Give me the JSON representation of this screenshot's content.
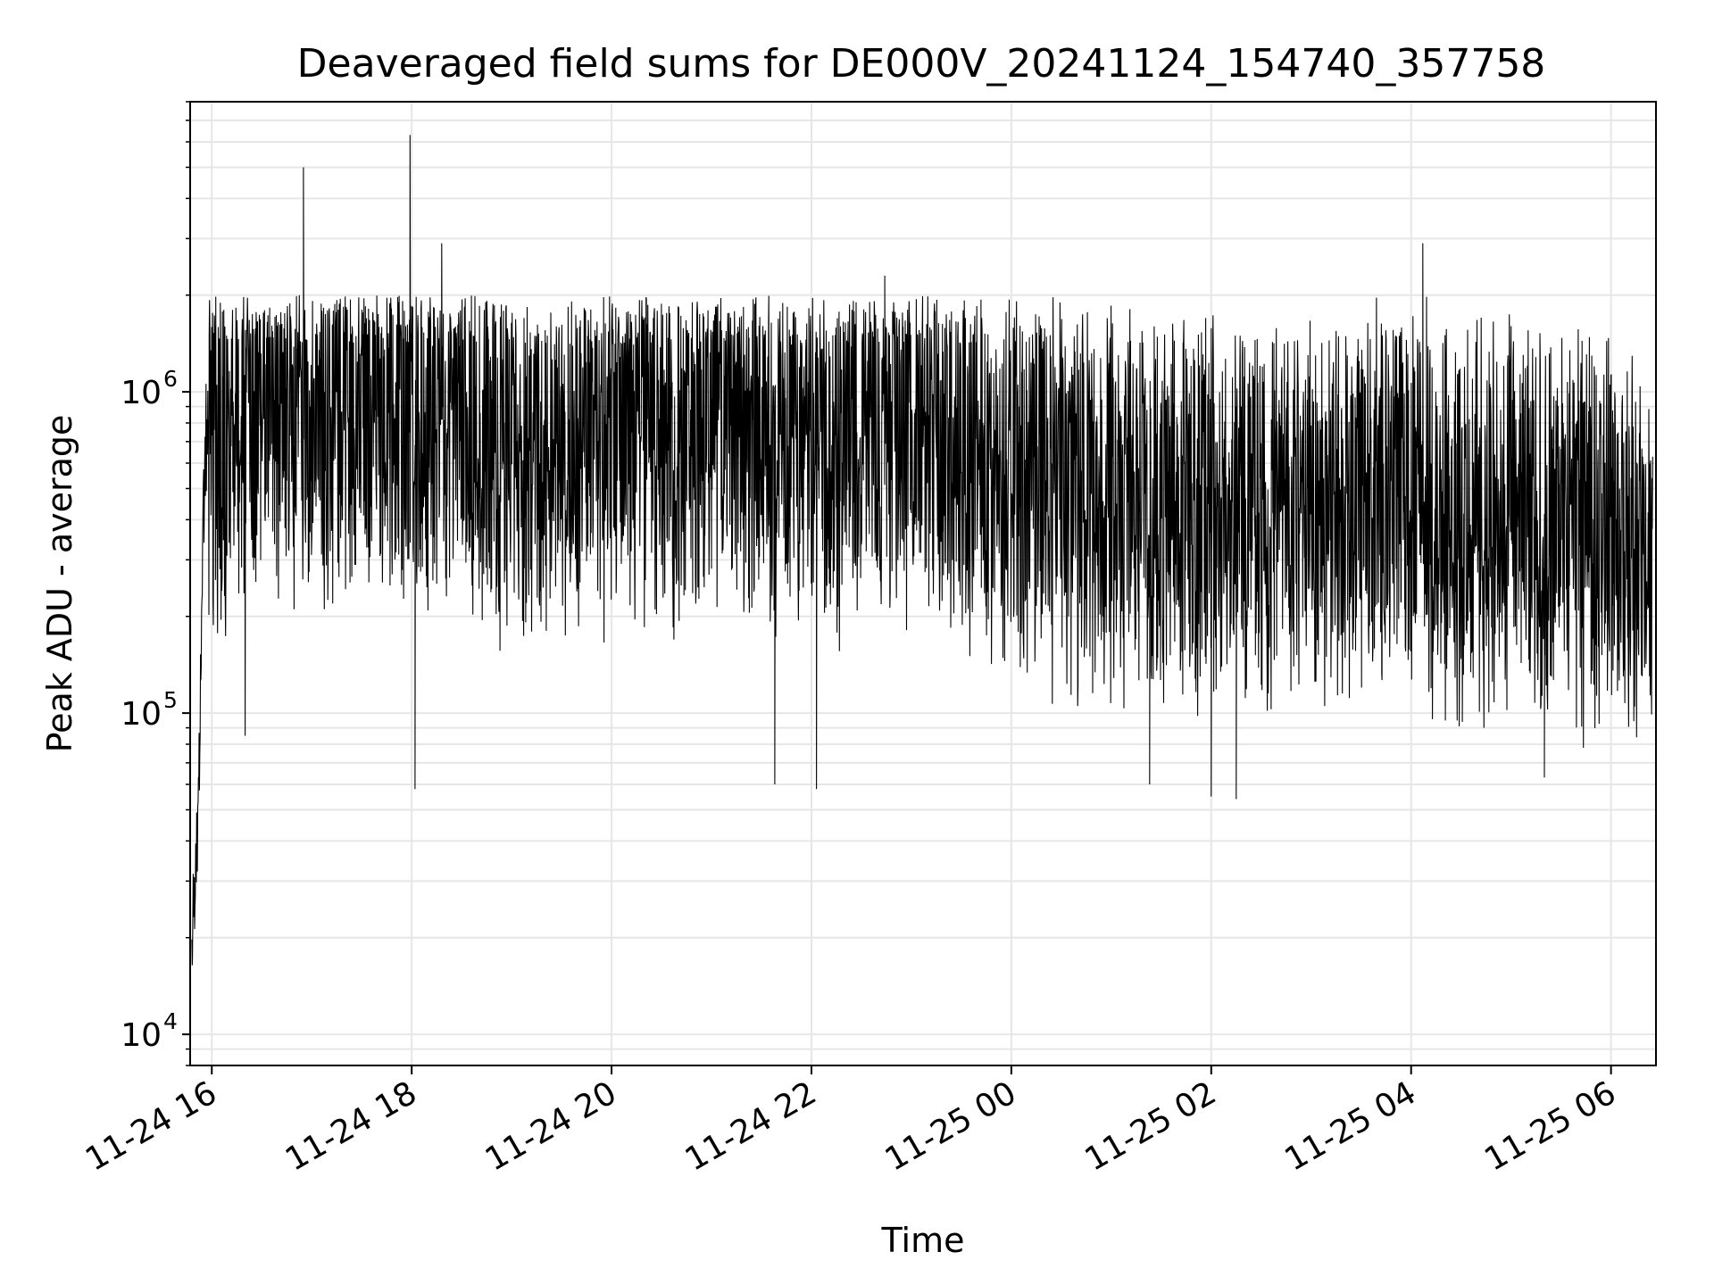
{
  "chart_data": {
    "type": "line",
    "title": "Deaveraged field sums for DE000V_20241124_154740_357758",
    "xlabel": "Time",
    "ylabel": "Peak ADU - average",
    "yscale": "log",
    "ylim": [
      8000,
      8000000
    ],
    "xlim": [
      "2024-11-24 15:47",
      "2024-11-25 06:27"
    ],
    "grid": true,
    "line_color": "#000000",
    "grid_color": "#e6e6e6",
    "x_ticks": [
      "11-24 16",
      "11-24 18",
      "11-24 20",
      "11-24 22",
      "11-25 00",
      "11-25 02",
      "11-25 04",
      "11-25 06"
    ],
    "y_ticks": [
      {
        "value": 10000,
        "base": "10",
        "exp": "4"
      },
      {
        "value": 100000,
        "base": "10",
        "exp": "5"
      },
      {
        "value": 1000000,
        "base": "10",
        "exp": "6"
      }
    ],
    "series": [
      {
        "x": [
          "2024-11-24 15:48",
          "2024-11-24 15:50",
          "2024-11-24 15:52",
          "2024-11-24 15:54",
          "2024-11-24 15:56",
          "2024-11-24 16:00",
          "2024-11-24 16:30",
          "2024-11-24 17:00",
          "2024-11-24 17:30",
          "2024-11-24 18:00",
          "2024-11-24 18:30",
          "2024-11-24 19:00",
          "2024-11-24 19:30",
          "2024-11-24 20:00",
          "2024-11-24 20:30",
          "2024-11-24 21:00",
          "2024-11-24 21:30",
          "2024-11-24 22:00",
          "2024-11-24 22:30",
          "2024-11-24 23:00",
          "2024-11-24 23:30",
          "2024-11-25 00:00",
          "2024-11-25 00:30",
          "2024-11-25 01:00",
          "2024-11-25 01:30",
          "2024-11-25 02:00",
          "2024-11-25 02:30",
          "2024-11-25 03:00",
          "2024-11-25 03:30",
          "2024-11-25 04:00",
          "2024-11-25 04:30",
          "2024-11-25 05:00",
          "2024-11-25 05:30",
          "2024-11-25 06:00",
          "2024-11-25 06:25"
        ],
        "values": [
          18000,
          30000,
          60000,
          200000,
          700000,
          800000,
          900000,
          950000,
          900000,
          850000,
          800000,
          750000,
          700000,
          750000,
          800000,
          800000,
          750000,
          700000,
          800000,
          850000,
          750000,
          550000,
          500000,
          480000,
          450000,
          430000,
          420000,
          450000,
          460000,
          440000,
          420000,
          380000,
          370000,
          380000,
          300000
        ],
        "noise_band": {
          "low": 60000,
          "high": 2000000
        },
        "peaks": [
          {
            "x": "2024-11-24 16:55",
            "value": 5000000
          },
          {
            "x": "2024-11-24 17:59",
            "value": 6300000
          },
          {
            "x": "2024-11-24 18:18",
            "value": 2900000
          },
          {
            "x": "2024-11-25 04:07",
            "value": 2900000
          },
          {
            "x": "2024-11-24 22:44",
            "value": 2300000
          },
          {
            "x": "2024-11-24 16:20",
            "value": 85000
          },
          {
            "x": "2024-11-24 21:38",
            "value": 60000
          },
          {
            "x": "2024-11-25 02:00",
            "value": 55000
          },
          {
            "x": "2024-11-25 02:15",
            "value": 54000
          },
          {
            "x": "2024-11-25 01:23",
            "value": 60000
          },
          {
            "x": "2024-11-25 05:20",
            "value": 63000
          },
          {
            "x": "2024-11-24 18:02",
            "value": 58000
          },
          {
            "x": "2024-11-24 22:03",
            "value": 58000
          }
        ]
      }
    ]
  }
}
